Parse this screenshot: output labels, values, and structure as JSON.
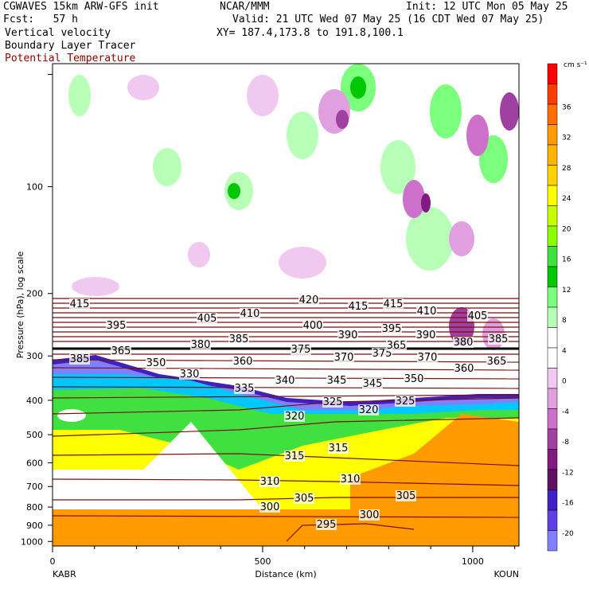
{
  "header": {
    "model": "CGWAVES 15km ARW-GFS init",
    "org": "NCAR/MMM",
    "init": "Init: 12 UTC Mon 05 May 25",
    "fcst": "Fcst:   57 h",
    "valid": "Valid: 21 UTC Wed 07 May 25 (16 CDT Wed 07 May 25)",
    "field1": "Vertical velocity",
    "field2": "Boundary Layer Tracer",
    "field3": "Potential Temperature",
    "xy": "XY= 187.4,173.8 to 191.8,100.1"
  },
  "colors": {
    "tracer": "#8b0000",
    "theta_contour": "#7a0f0f",
    "tropopause": "#000000"
  },
  "chart_data": {
    "type": "heatmap",
    "title": "Vertical velocity / Boundary Layer Tracer / Potential Temperature cross section",
    "xlabel": "Distance (km)",
    "ylabel": "Pressure (hPa), log scale",
    "x_ticks": [
      "0",
      "500",
      "1000"
    ],
    "x_endpoints": {
      "left": "KABR",
      "right": "KOUN"
    },
    "xlim": [
      0,
      1110
    ],
    "y_ticks": [
      "100",
      "200",
      "300",
      "400",
      "500",
      "600",
      "700",
      "800",
      "900",
      "1000"
    ],
    "yscale": "log",
    "colorbar": {
      "unit": "cm s⁻¹",
      "ticks": [
        "36",
        "32",
        "28",
        "24",
        "20",
        "16",
        "12",
        "8",
        "4",
        "0",
        "-4",
        "-8",
        "-12",
        "-16",
        "-20"
      ],
      "colors": [
        "#ff0000",
        "#ff3c00",
        "#ff6e00",
        "#ff9a00",
        "#ffb400",
        "#ffd200",
        "#ffff00",
        "#c8ff00",
        "#8cff00",
        "#40e040",
        "#00c800",
        "#7cff7c",
        "#b8ffb8",
        "#ffffff",
        "#ffffff",
        "#f0c8f0",
        "#e0a0e0",
        "#cc70cc",
        "#a040a0",
        "#801a80",
        "#601060",
        "#4020c0",
        "#6040e0",
        "#8080ff"
      ]
    },
    "theta_labels": [
      "415",
      "420",
      "415",
      "415",
      "410",
      "410",
      "405",
      "405",
      "395",
      "400",
      "395",
      "390",
      "390",
      "385",
      "380",
      "380",
      "385",
      "375",
      "375",
      "370",
      "370",
      "365",
      "360",
      "350",
      "360",
      "365",
      "340",
      "345",
      "345",
      "350",
      "335",
      "330",
      "325",
      "325",
      "320",
      "320",
      "315",
      "315",
      "310",
      "310",
      "305",
      "305",
      "300",
      "300",
      "295",
      "385",
      "365"
    ]
  }
}
